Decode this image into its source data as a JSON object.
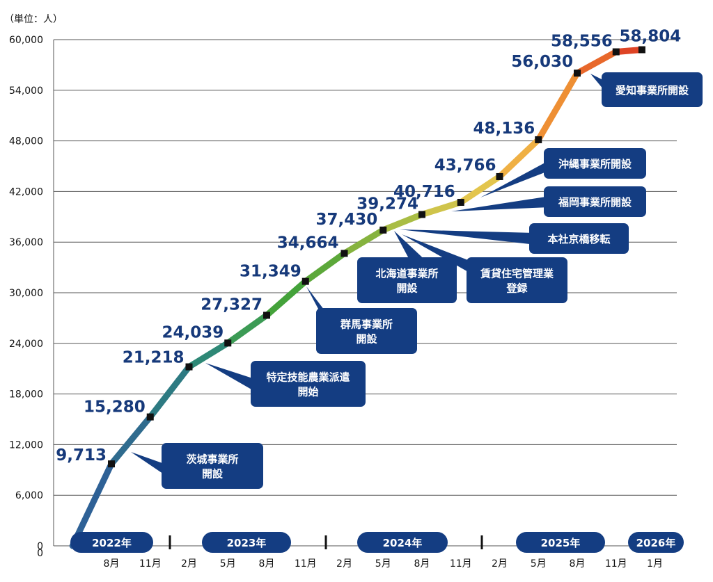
{
  "chart_data": {
    "type": "line",
    "unit_label": "（単位：人）",
    "ylim": [
      0,
      60000
    ],
    "yticks": [
      "0",
      "6,000",
      "12,000",
      "18,000",
      "24,000",
      "30,000",
      "36,000",
      "42,000",
      "48,000",
      "54,000",
      "60,000"
    ],
    "grid": true,
    "years": [
      "2022年",
      "2023年",
      "2024年",
      "2025年",
      "2026年"
    ],
    "month_labels": [
      "8月",
      "11月",
      "2月",
      "5月",
      "8月",
      "11月",
      "2月",
      "5月",
      "8月",
      "11月",
      "2月",
      "5月",
      "8月",
      "11月",
      "1月"
    ],
    "series": [
      {
        "points": [
          {
            "x": "2022-05",
            "y": 0
          },
          {
            "x": "2022-08",
            "y": 9713,
            "label": "9,713"
          },
          {
            "x": "2022-11",
            "y": 15280,
            "label": "15,280"
          },
          {
            "x": "2023-02",
            "y": 21218,
            "label": "21,218"
          },
          {
            "x": "2023-05",
            "y": 24039,
            "label": "24,039"
          },
          {
            "x": "2023-08",
            "y": 27327,
            "label": "27,327"
          },
          {
            "x": "2023-11",
            "y": 31349,
            "label": "31,349"
          },
          {
            "x": "2024-02",
            "y": 34664,
            "label": "34,664"
          },
          {
            "x": "2024-05",
            "y": 37430,
            "label": "37,430"
          },
          {
            "x": "2024-08",
            "y": 39274,
            "label": "39,274"
          },
          {
            "x": "2024-11",
            "y": 40716,
            "label": "40,716"
          },
          {
            "x": "2025-02",
            "y": 43766,
            "label": "43,766"
          },
          {
            "x": "2025-05",
            "y": 48136,
            "label": "48,136"
          },
          {
            "x": "2025-08",
            "y": 56030,
            "label": "56,030"
          },
          {
            "x": "2025-11",
            "y": 58556,
            "label": "58,556"
          },
          {
            "x": "2026-01",
            "y": 58804,
            "label": "58,804"
          }
        ]
      }
    ],
    "annotations": [
      {
        "lines": [
          "茨城事業所",
          "開設"
        ],
        "x": "2022-08"
      },
      {
        "lines": [
          "特定技能農業派遣",
          "開始"
        ],
        "x": "2023-02"
      },
      {
        "lines": [
          "群馬事業所",
          "開設"
        ],
        "x": "2023-11"
      },
      {
        "lines": [
          "北海道事業所",
          "開設"
        ],
        "x": "2024-05"
      },
      {
        "lines": [
          "賃貸住宅管理業",
          "登録"
        ],
        "x": "2024-05"
      },
      {
        "lines": [
          "本社京橋移転"
        ],
        "x": "2024-05"
      },
      {
        "lines": [
          "福岡事業所開設"
        ],
        "x": "2024-11"
      },
      {
        "lines": [
          "沖縄事業所開設"
        ],
        "x": "2025-02"
      },
      {
        "lines": [
          "愛知事業所開設"
        ],
        "x": "2025-08"
      }
    ]
  }
}
